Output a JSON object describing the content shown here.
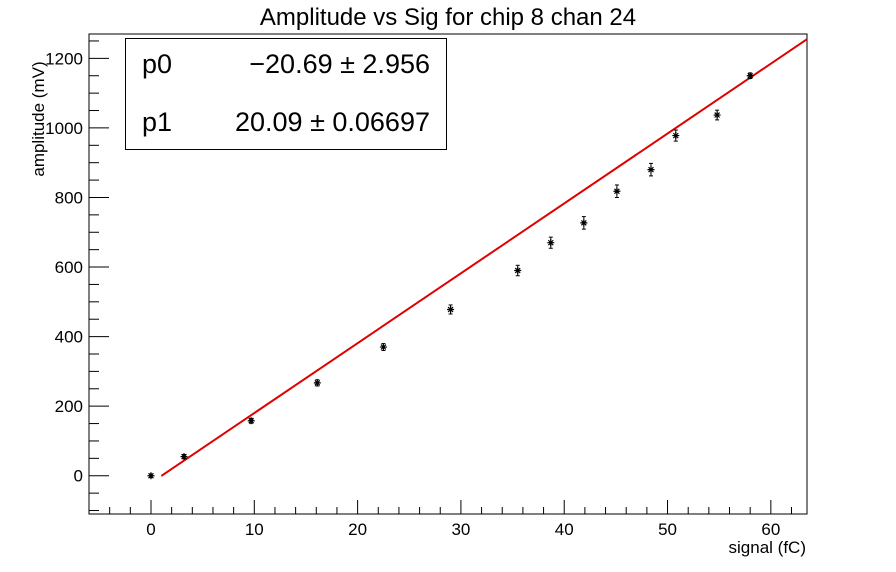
{
  "chart_data": {
    "type": "scatter",
    "title": "Amplitude vs Sig for chip 8 chan 24",
    "xlabel": "signal (fC)",
    "ylabel": "amplitude (mV)",
    "xlim": [
      -6,
      63.5
    ],
    "ylim": [
      -110,
      1270
    ],
    "xticks": [
      0,
      10,
      20,
      30,
      40,
      50,
      60
    ],
    "yticks": [
      0,
      200,
      400,
      600,
      800,
      1000,
      1200
    ],
    "series": [
      {
        "x": [
          0,
          3.2,
          9.7,
          16.1,
          22.5,
          29.0,
          35.5,
          38.7,
          41.9,
          45.1,
          48.4,
          50.8,
          54.8,
          58.0
        ],
        "y": [
          0,
          55,
          158,
          267,
          370,
          478,
          590,
          670,
          727,
          818,
          880,
          978,
          1037,
          1150
        ],
        "yerr": [
          5,
          6,
          7,
          9,
          10,
          13,
          15,
          16,
          18,
          18,
          18,
          16,
          14,
          8
        ]
      }
    ],
    "fit": {
      "p0": -20.69,
      "p1": 20.09,
      "x_range": [
        1.0,
        63.5
      ],
      "color": "#e00000"
    },
    "stats": [
      {
        "name": "p0",
        "value": "−20.69 ± 2.956"
      },
      {
        "name": "p1",
        "value": "20.09 ± 0.06697"
      }
    ]
  }
}
